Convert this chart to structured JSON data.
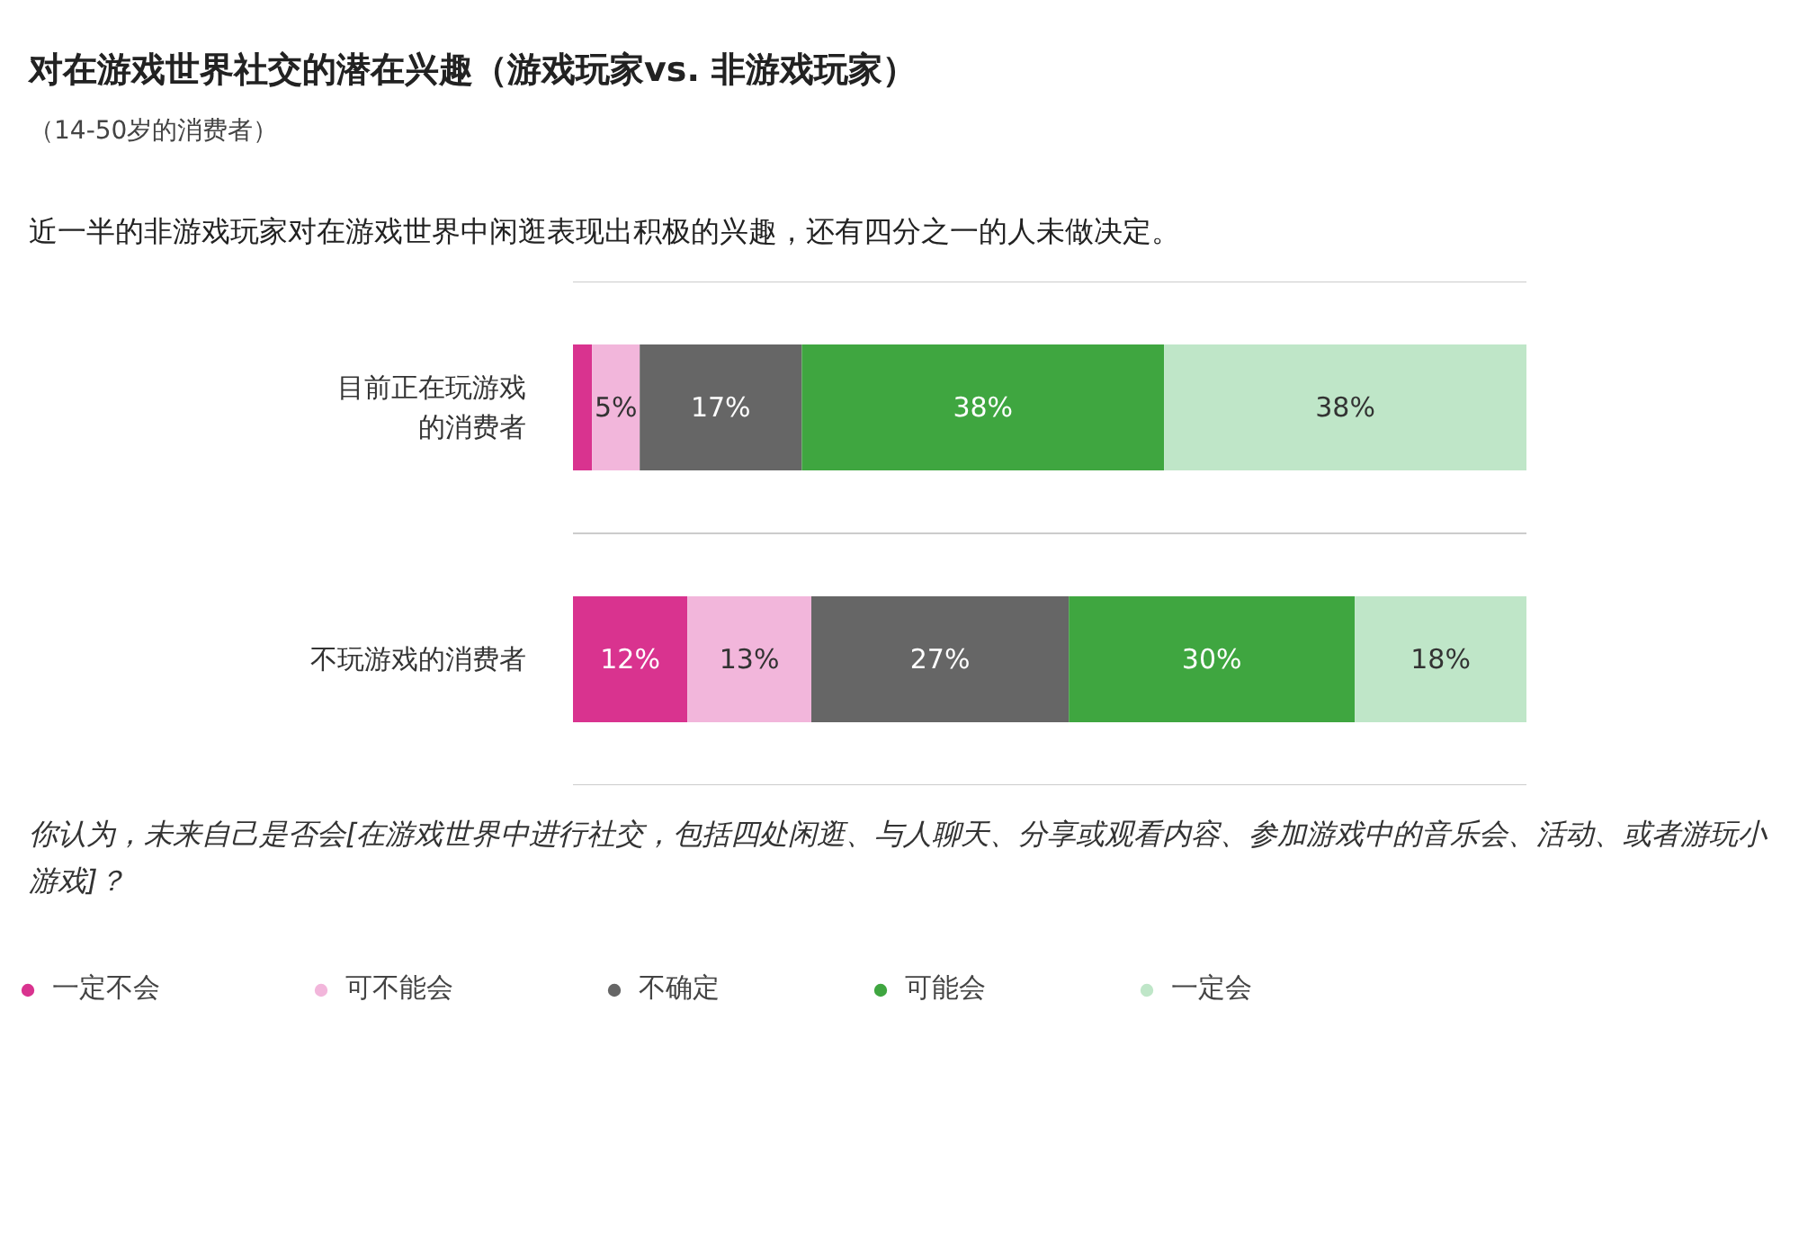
{
  "chart_data": {
    "type": "bar",
    "orientation": "horizontal",
    "stacked": true,
    "title": "对在游戏世界社交的潜在兴趣（游戏玩家vs. 非游戏玩家）",
    "subtitle": "（14-50岁的消费者）",
    "annotations": [
      "近一半的非游戏玩家对在游戏世界中闲逛表现出积极的兴趣，还有四分之一的人未做决定。",
      "你认为，未来自己是否会[在游戏世界中进行社交，包括四处闲逛、与人聊天、分享或观看内容、参加游戏中的音乐会、活动、或者游玩小游戏]？"
    ],
    "categories": [
      "目前正在玩游戏的消费者",
      "不玩游戏的消费者"
    ],
    "xlim": [
      0,
      100
    ],
    "tick_labels": "y",
    "grid": "y",
    "legend": "bottom",
    "series": [
      {
        "name": "一定不会",
        "color": "#d9338f",
        "values": [
          2,
          12
        ],
        "value_labels": [
          null,
          "12%"
        ]
      },
      {
        "name": "可不能会",
        "color": "#f2b6db",
        "values": [
          5,
          13
        ],
        "value_labels": [
          "5%",
          "13%"
        ]
      },
      {
        "name": "不确定",
        "color": "#666666",
        "values": [
          17,
          27
        ],
        "value_labels": [
          "17%",
          "27%"
        ]
      },
      {
        "name": "可能会",
        "color": "#3fa640",
        "values": [
          38,
          30
        ],
        "value_labels": [
          "38%",
          "30%"
        ]
      },
      {
        "name": "一定会",
        "color": "#bfe6c8",
        "values": [
          38,
          18
        ],
        "value_labels": [
          "38%",
          "18%"
        ]
      }
    ]
  }
}
